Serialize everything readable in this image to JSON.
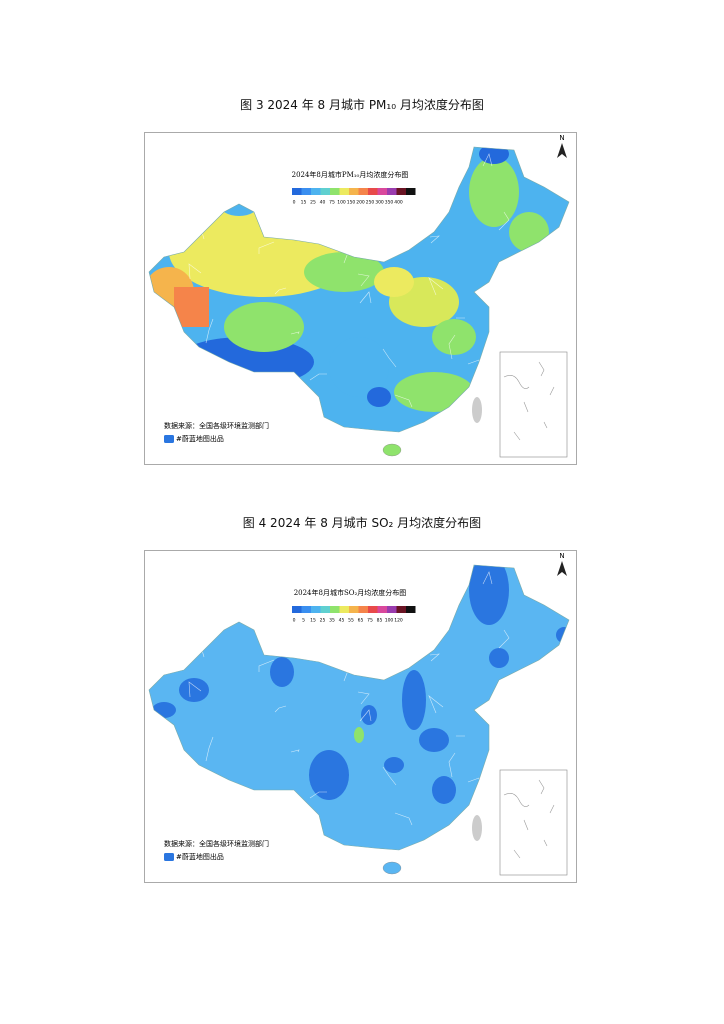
{
  "figures": [
    {
      "caption": "图 3  2024 年 8 月城市 PM₁₀ 月均浓度分布图",
      "map_title": "2024年8月城市PM₁₀月均浓度分布图",
      "legend": {
        "labels": [
          "0",
          "15",
          "25",
          "40",
          "75",
          "100",
          "150",
          "200",
          "250",
          "300",
          "350",
          "400"
        ],
        "colors": [
          "#2369dc",
          "#3a8ff0",
          "#4db3ef",
          "#5fd0d0",
          "#8fe36c",
          "#ecea5f",
          "#f5b44c",
          "#f5844a",
          "#e84a4a",
          "#d9489c",
          "#9a3cae",
          "#6a1424",
          "#111111"
        ]
      },
      "source": "数据来源：全国各级环境监测部门",
      "credit": "#蔚蓝地图出品",
      "north": "N"
    },
    {
      "caption": "图 4  2024 年 8 月城市 SO₂ 月均浓度分布图",
      "map_title": "2024年8月城市SO₂月均浓度分布图",
      "legend": {
        "labels": [
          "0",
          "5",
          "15",
          "25",
          "35",
          "45",
          "55",
          "65",
          "75",
          "85",
          "100",
          "120"
        ],
        "colors": [
          "#2369dc",
          "#3a8ff0",
          "#4db3ef",
          "#5fd0d0",
          "#8fe36c",
          "#ecea5f",
          "#f5b44c",
          "#f5844a",
          "#e84a4a",
          "#d9489c",
          "#9a3cae",
          "#6a1424",
          "#111111"
        ]
      },
      "source": "数据来源：全国各级环境监测部门",
      "credit": "#蔚蓝地图出品",
      "north": "N"
    }
  ]
}
